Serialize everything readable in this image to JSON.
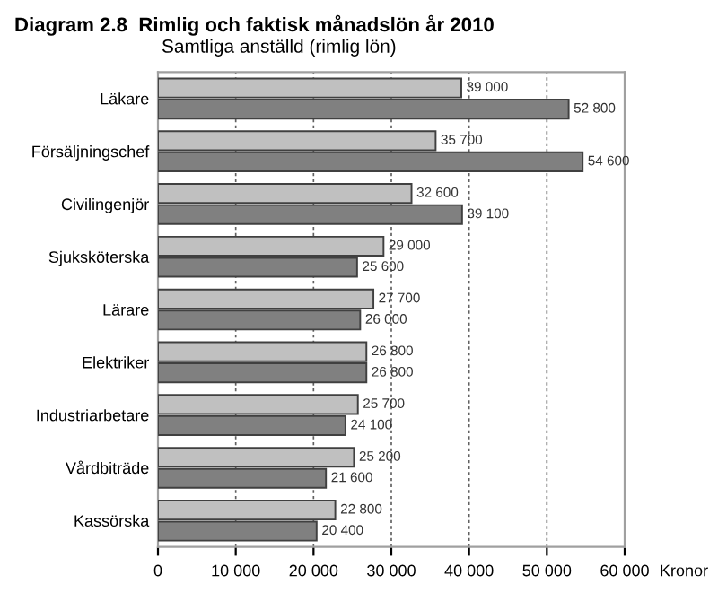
{
  "chart_data": {
    "type": "bar",
    "orientation": "horizontal",
    "title": "Diagram 2.8  Rimlig och faktisk månadslön år 2010",
    "subtitle": "Samtliga anställd (rimlig lön)",
    "xlabel": "Kronor",
    "categories": [
      "Läkare",
      "Försäljningschef",
      "Civilingenjör",
      "Sjuksköterska",
      "Lärare",
      "Elektriker",
      "Industriarbetare",
      "Vårdbiträde",
      "Kassörska"
    ],
    "series": [
      {
        "color": "#c0c0c0",
        "values": [
          39000,
          35700,
          32600,
          29000,
          27700,
          26800,
          25700,
          25200,
          22800
        ],
        "value_labels": [
          "39 000",
          "35 700",
          "32 600",
          "29 000",
          "27 700",
          "26 800",
          "25 700",
          "25 200",
          "22 800"
        ]
      },
      {
        "color": "#808080",
        "values": [
          52800,
          54600,
          39100,
          25600,
          26000,
          26800,
          24100,
          21600,
          20400
        ],
        "value_labels": [
          "52 800",
          "54 600",
          "39 100",
          "25 600",
          "26 000",
          "26 800",
          "24 100",
          "21 600",
          "20 400"
        ]
      }
    ],
    "xlim": [
      0,
      60000
    ],
    "xticks": [
      {
        "value": 0,
        "label": "0"
      },
      {
        "value": 10000,
        "label": "10 000"
      },
      {
        "value": 20000,
        "label": "20 000"
      },
      {
        "value": 30000,
        "label": "30 000"
      },
      {
        "value": 40000,
        "label": "40 000"
      },
      {
        "value": 50000,
        "label": "50 000"
      },
      {
        "value": 60000,
        "label": "60 000"
      }
    ],
    "grid": "x",
    "legend": false
  }
}
